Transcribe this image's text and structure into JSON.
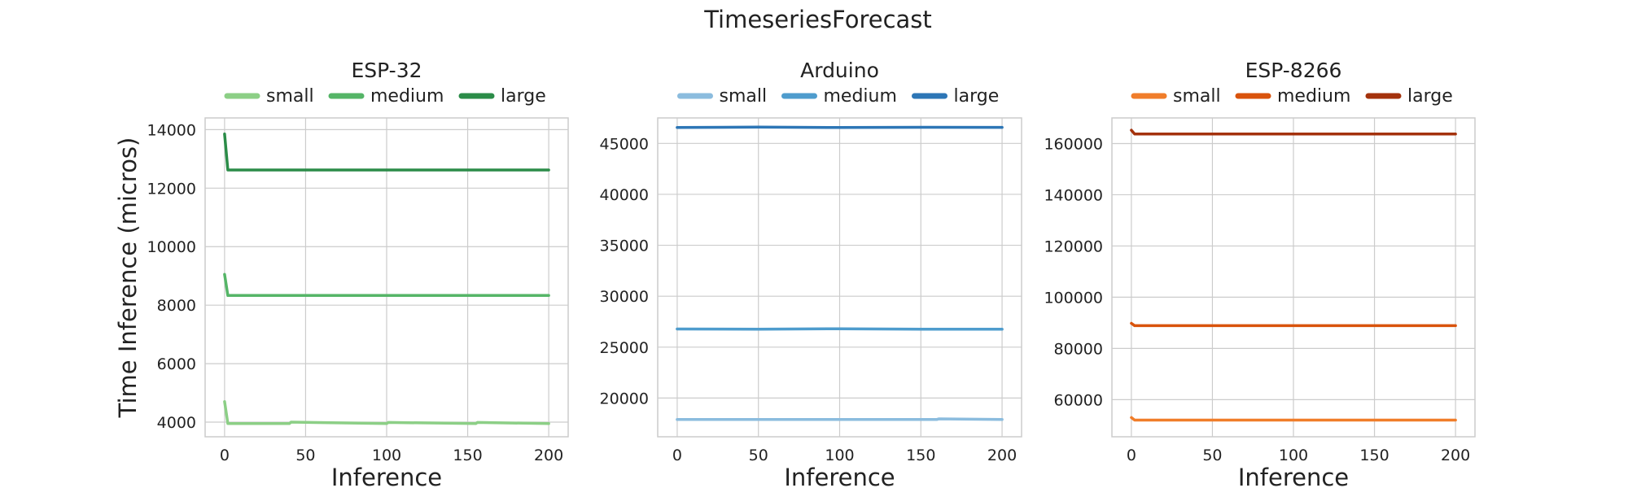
{
  "figure": {
    "title": "TimeseriesForecast"
  },
  "chart_data": [
    {
      "type": "line",
      "title": "ESP-32",
      "xlabel": "Inference",
      "ylabel": "Time Inference (micros)",
      "xlim": [
        -12,
        212
      ],
      "ylim": [
        3500,
        14400
      ],
      "xticks": [
        0,
        50,
        100,
        150,
        200
      ],
      "yticks": [
        4000,
        6000,
        8000,
        10000,
        12000,
        14000
      ],
      "grid": true,
      "legend_position": "top",
      "series": [
        {
          "name": "small",
          "color": "#8ccf86",
          "x": [
            0,
            2,
            40,
            41,
            100,
            101,
            155,
            156,
            200
          ],
          "y": [
            4700,
            3950,
            3950,
            4000,
            3950,
            3990,
            3950,
            3990,
            3950
          ]
        },
        {
          "name": "medium",
          "color": "#55b567",
          "x": [
            0,
            2,
            200
          ],
          "y": [
            9050,
            8330,
            8330
          ]
        },
        {
          "name": "large",
          "color": "#2b8c48",
          "x": [
            0,
            2,
            200
          ],
          "y": [
            13850,
            12620,
            12620
          ]
        }
      ]
    },
    {
      "type": "line",
      "title": "Arduino",
      "xlabel": "Inference",
      "ylabel": "",
      "xlim": [
        -12,
        212
      ],
      "ylim": [
        16200,
        47500
      ],
      "xticks": [
        0,
        50,
        100,
        150,
        200
      ],
      "yticks": [
        20000,
        25000,
        30000,
        35000,
        40000,
        45000
      ],
      "grid": true,
      "legend_position": "top",
      "series": [
        {
          "name": "small",
          "color": "#8bbcde",
          "x": [
            0,
            160,
            161,
            200
          ],
          "y": [
            17900,
            17900,
            17960,
            17900
          ]
        },
        {
          "name": "medium",
          "color": "#4e9ccd",
          "x": [
            0,
            50,
            100,
            150,
            200
          ],
          "y": [
            26780,
            26760,
            26800,
            26760,
            26760
          ]
        },
        {
          "name": "large",
          "color": "#2d76b6",
          "x": [
            0,
            50,
            100,
            150,
            200
          ],
          "y": [
            46560,
            46600,
            46560,
            46580,
            46570
          ]
        }
      ]
    },
    {
      "type": "line",
      "title": "ESP-8266",
      "xlabel": "Inference",
      "ylabel": "",
      "xlim": [
        -12,
        212
      ],
      "ylim": [
        45500,
        170000
      ],
      "xticks": [
        0,
        50,
        100,
        150,
        200
      ],
      "yticks": [
        60000,
        80000,
        100000,
        120000,
        140000,
        160000
      ],
      "grid": true,
      "legend_position": "top",
      "series": [
        {
          "name": "small",
          "color": "#f07d2a",
          "x": [
            0,
            2,
            200
          ],
          "y": [
            53000,
            52000,
            52000
          ]
        },
        {
          "name": "medium",
          "color": "#d9530c",
          "x": [
            0,
            2,
            200
          ],
          "y": [
            89800,
            88900,
            88900
          ]
        },
        {
          "name": "large",
          "color": "#a4320c",
          "x": [
            0,
            2,
            200
          ],
          "y": [
            165200,
            163700,
            163700
          ]
        }
      ]
    }
  ]
}
